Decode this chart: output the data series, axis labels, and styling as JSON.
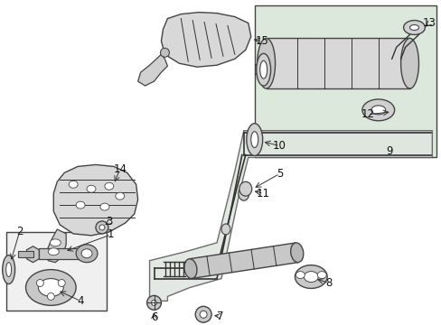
{
  "bg_color": "#ffffff",
  "fig_width": 4.89,
  "fig_height": 3.6,
  "dpi": 100,
  "line_color": "#333333",
  "fill_light": "#e8e8e8",
  "fill_mid": "#d0d0d0",
  "fill_dark": "#b8b8b8",
  "box_fill": "#e0e8e0"
}
